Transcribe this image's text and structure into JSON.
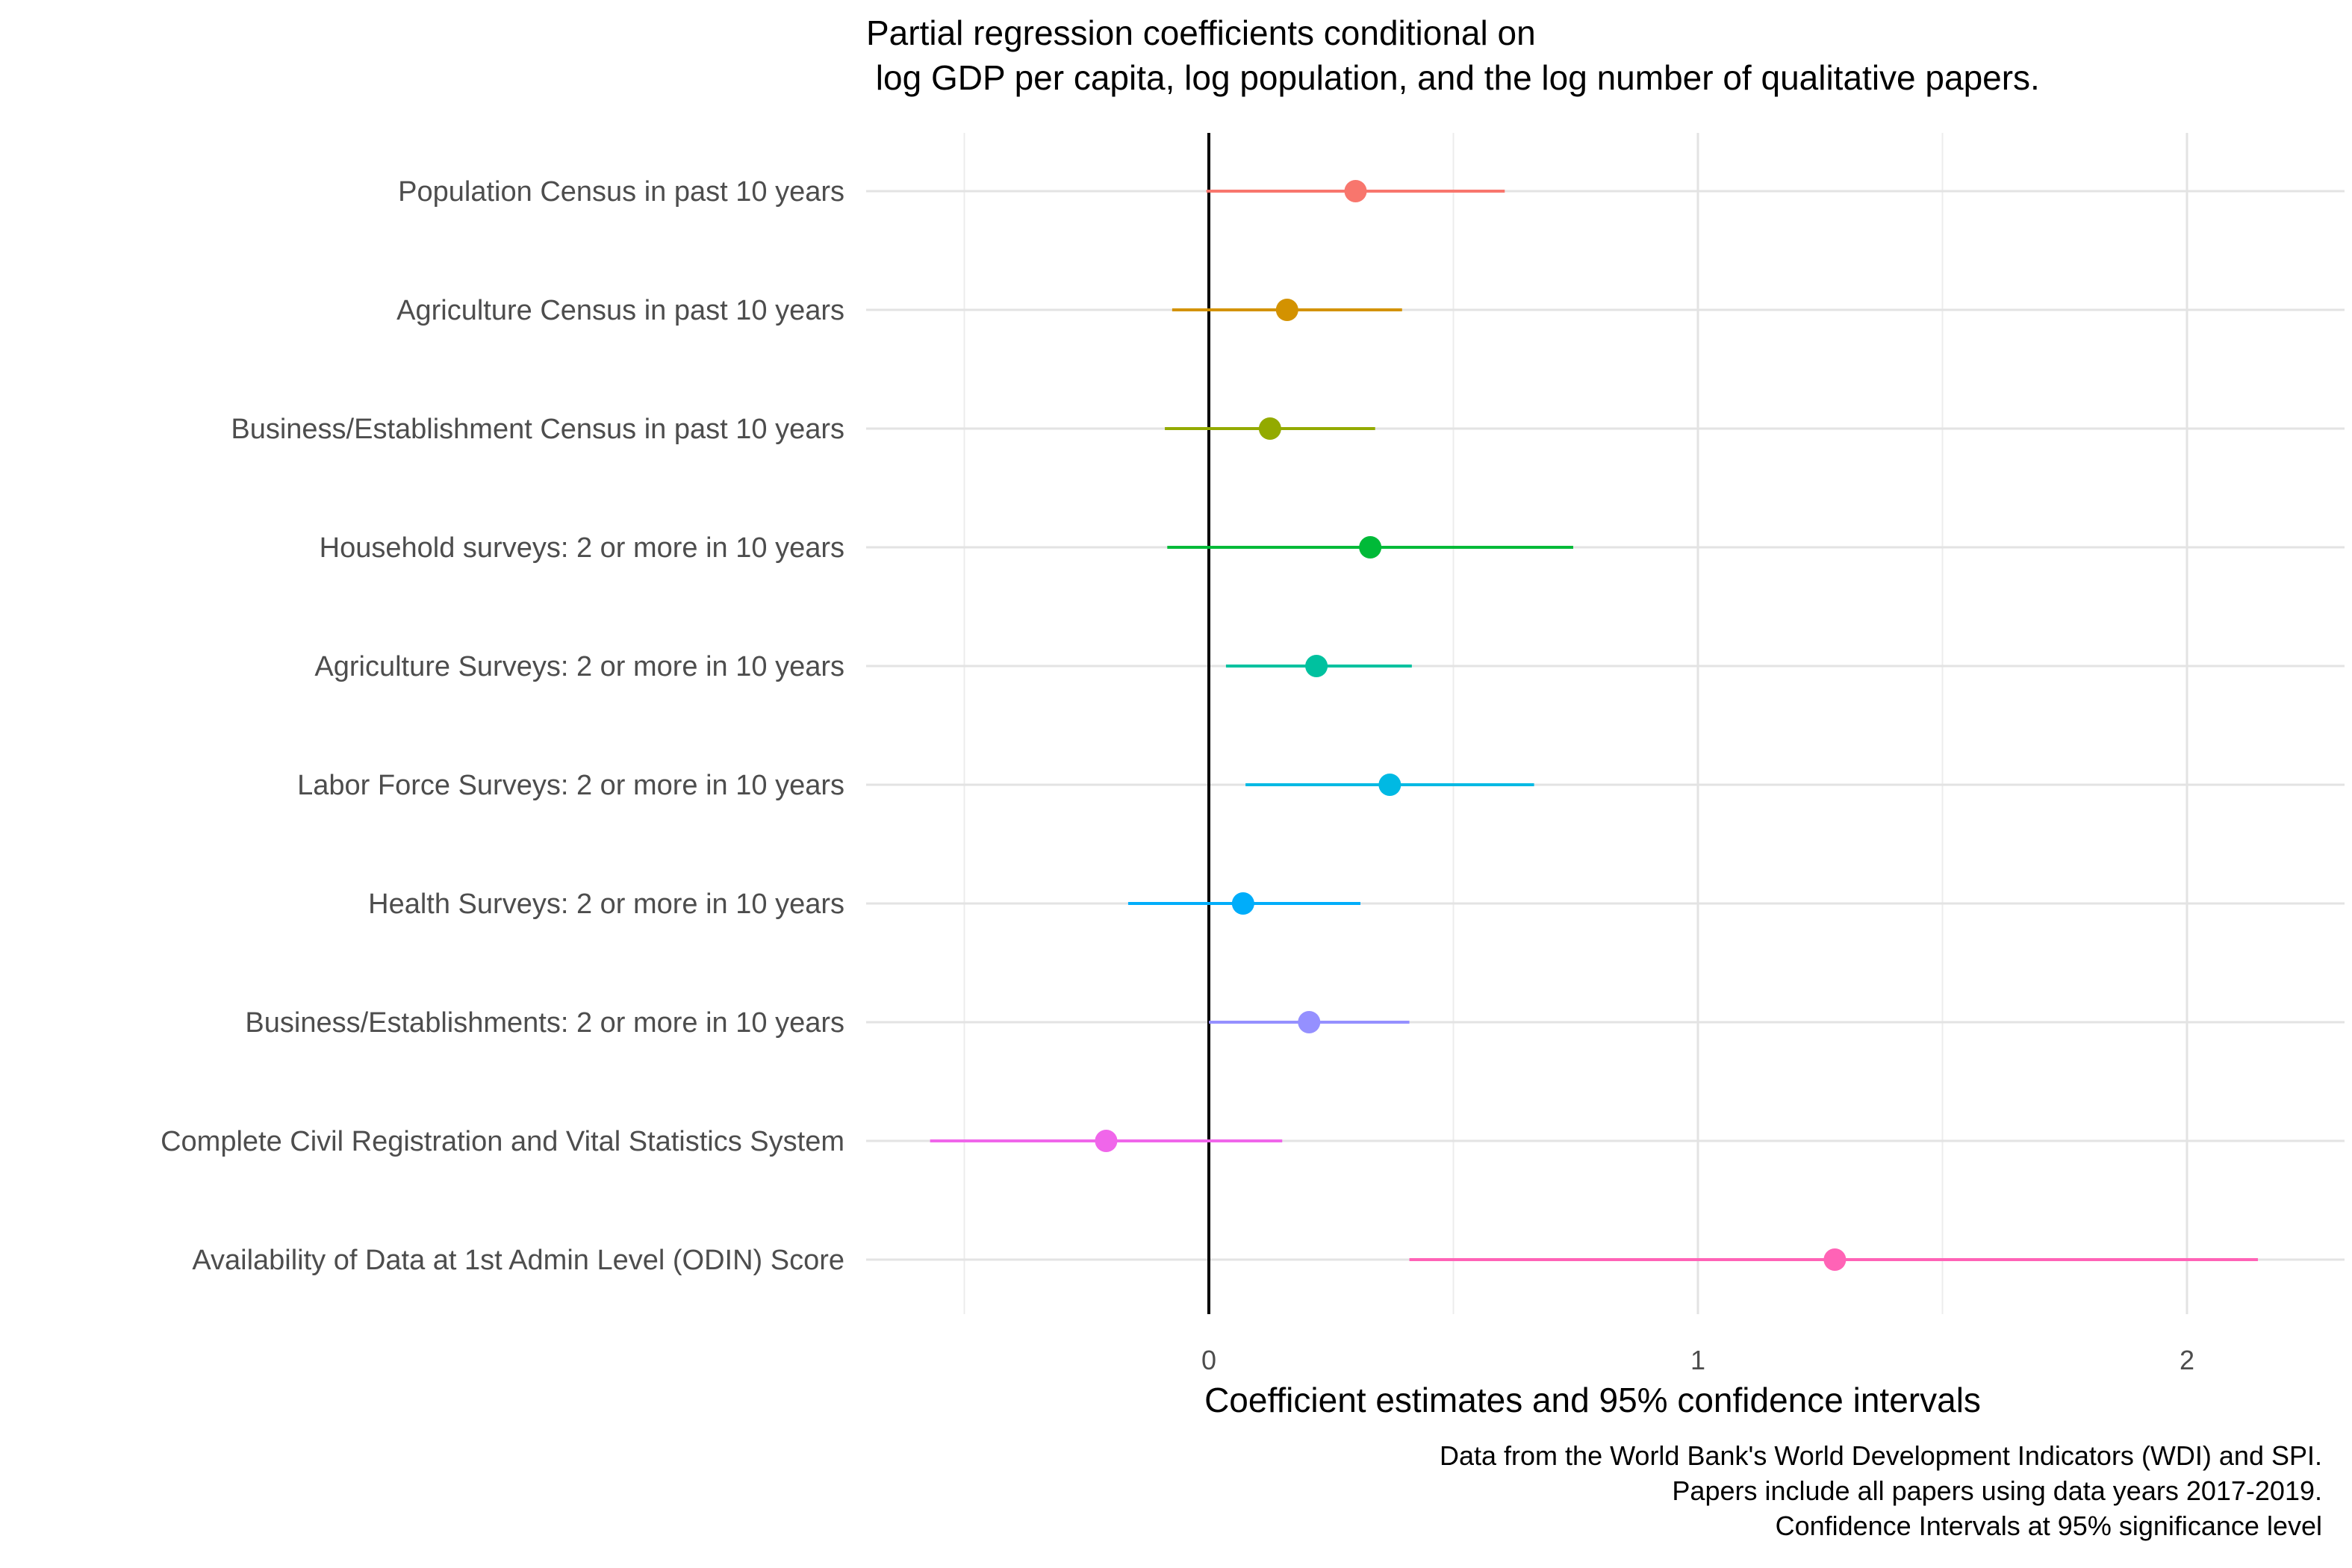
{
  "chart_data": {
    "type": "scatter",
    "subtype": "coefficient-plot",
    "title": [
      "Partial regression coefficients conditional on",
      " log GDP per capita, log population, and the log number of qualitative papers."
    ],
    "xlabel": "Coefficient estimates and 95% confidence intervals",
    "ylabel": "",
    "caption": [
      "Data from the World Bank's World Development Indicators (WDI) and SPI.",
      "Papers include all papers using data years 2017-2019.",
      "Confidence Intervals at 95% significance level"
    ],
    "xlim": [
      -0.57,
      2.18
    ],
    "xticks": [
      0,
      1,
      2
    ],
    "xtick_labels": [
      "0",
      "1",
      "2"
    ],
    "reference_line_x": 0,
    "grid": true,
    "legend": "none",
    "series": [
      {
        "label": "Population Census in past 10 years",
        "estimate": 0.3,
        "ci_low": -0.005,
        "ci_high": 0.605,
        "color": "#F8766D"
      },
      {
        "label": "Agriculture Census  in past 10 years",
        "estimate": 0.16,
        "ci_low": -0.075,
        "ci_high": 0.395,
        "color": "#D39200"
      },
      {
        "label": "Business/Establishment Census in past 10 years",
        "estimate": 0.125,
        "ci_low": -0.09,
        "ci_high": 0.34,
        "color": "#93AA00"
      },
      {
        "label": "Household surveys: 2 or more in 10 years",
        "estimate": 0.33,
        "ci_low": -0.085,
        "ci_high": 0.745,
        "color": "#00BA38"
      },
      {
        "label": "Agriculture Surveys: 2 or more in 10 years",
        "estimate": 0.22,
        "ci_low": 0.035,
        "ci_high": 0.415,
        "color": "#00C19F"
      },
      {
        "label": "Labor Force Surveys: 2 or more in 10 years",
        "estimate": 0.37,
        "ci_low": 0.075,
        "ci_high": 0.665,
        "color": "#00B9E3"
      },
      {
        "label": "Health Surveys: 2 or more in 10 years",
        "estimate": 0.07,
        "ci_low": -0.165,
        "ci_high": 0.31,
        "color": "#00ADFA"
      },
      {
        "label": "Business/Establishments: 2 or more in 10 years",
        "estimate": 0.205,
        "ci_low": 0.0,
        "ci_high": 0.41,
        "color": "#9590FF"
      },
      {
        "label": "Complete Civil Registration and Vital Statistics System",
        "estimate": -0.21,
        "ci_low": -0.57,
        "ci_high": 0.15,
        "color": "#F066EA"
      },
      {
        "label": "Availability of Data at 1st Admin Level (ODIN) Score",
        "estimate": 1.28,
        "ci_low": 0.41,
        "ci_high": 2.145,
        "color": "#FF63B6"
      }
    ]
  }
}
